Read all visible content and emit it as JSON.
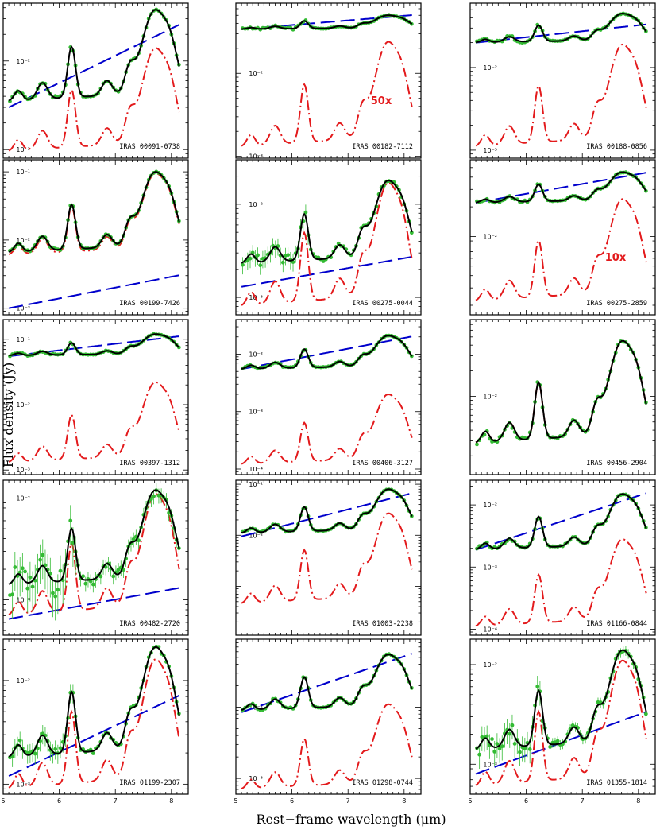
{
  "figure": {
    "ylabel": "Flux density (Jy)",
    "xlabel": "Rest−frame wavelength (μm)"
  },
  "chart_data": {
    "type": "line",
    "layout": {
      "columns": 3,
      "rows": 5,
      "log_y": true,
      "xlim": [
        5.0,
        8.3
      ]
    },
    "x_ticks": [
      5,
      6,
      7,
      8
    ],
    "x_tick_labels": [
      "5",
      "6",
      "7",
      "8"
    ],
    "colors": {
      "observed": "#33bb33",
      "total": "#000000",
      "continuum": "#0000cc",
      "pah": "#e31a1c"
    },
    "panels": [
      {
        "name": "IRAS 00091-0738",
        "ylim": [
          0.0008,
          0.045
        ],
        "yticks": [
          0.001,
          0.01
        ],
        "ytick_labels": [
          "10⁻³",
          "10⁻²"
        ],
        "scale_label": "",
        "cont": [
          0.003,
          0.025
        ],
        "pah_peak": 0.014,
        "pah_min": 0.00095,
        "tot_peak": 0.038,
        "tot_min": 0.0035,
        "noise": 0.05
      },
      {
        "name": "IRAS 00182-7112",
        "ylim": [
          0.00095,
          0.07
        ],
        "yticks": [
          0.001,
          0.01
        ],
        "ytick_labels": [
          "10⁻³",
          "10⁻²"
        ],
        "scale_label": "50x",
        "cont": [
          0.034,
          0.05
        ],
        "pah_peak": 0.024,
        "pah_min": 0.0013,
        "tot_peak": 0.05,
        "tot_min": 0.034,
        "noise": 0.03
      },
      {
        "name": "IRAS 00188-0856",
        "ylim": [
          0.0008,
          0.06
        ],
        "yticks": [
          0.001,
          0.01
        ],
        "ytick_labels": [
          "10⁻³",
          "10⁻²"
        ],
        "scale_label": "",
        "cont": [
          0.02,
          0.033
        ],
        "pah_peak": 0.019,
        "pah_min": 0.0011,
        "tot_peak": 0.045,
        "tot_min": 0.02,
        "noise": 0.04
      },
      {
        "name": "IRAS 00199-7426",
        "ylim": [
          0.0008,
          0.15
        ],
        "yticks": [
          0.001,
          0.01,
          0.1
        ],
        "ytick_labels": [
          "10⁻³",
          "10⁻²",
          "10⁻¹"
        ],
        "scale_label": "",
        "cont": [
          0.001,
          0.003
        ],
        "pah_peak": 0.095,
        "pah_min": 0.006,
        "tot_peak": 0.1,
        "tot_min": 0.0065,
        "noise": 0.04
      },
      {
        "name": "IRAS 00275-0044",
        "ylim": [
          0.00065,
          0.03
        ],
        "yticks": [
          0.001,
          0.01
        ],
        "ytick_labels": [
          "10⁻³",
          "10⁻²"
        ],
        "scale_label": "",
        "cont": [
          0.0013,
          0.0027
        ],
        "pah_peak": 0.017,
        "pah_min": 0.0008,
        "tot_peak": 0.018,
        "tot_min": 0.0023,
        "noise": 0.15
      },
      {
        "name": "IRAS 00275-2859",
        "ylim": [
          0.0016,
          0.06
        ],
        "yticks": [
          0.01
        ],
        "ytick_labels": [
          "10⁻²"
        ],
        "scale_label": "10x",
        "cont": [
          0.022,
          0.044
        ],
        "pah_peak": 0.024,
        "pah_min": 0.0022,
        "tot_peak": 0.045,
        "tot_min": 0.022,
        "noise": 0.03
      },
      {
        "name": "IRAS 00397-1312",
        "ylim": [
          0.00085,
          0.2
        ],
        "yticks": [
          0.001,
          0.01,
          0.1
        ],
        "ytick_labels": [
          "10⁻³",
          "10⁻²",
          "10⁻¹"
        ],
        "scale_label": "",
        "cont": [
          0.055,
          0.11
        ],
        "pah_peak": 0.022,
        "pah_min": 0.0013,
        "tot_peak": 0.12,
        "tot_min": 0.056,
        "noise": 0.03
      },
      {
        "name": "IRAS 00406-3127",
        "ylim": [
          8e-05,
          0.04
        ],
        "yticks": [
          0.0001,
          0.001,
          0.01
        ],
        "ytick_labels": [
          "10⁻⁴",
          "10⁻³",
          "10⁻²"
        ],
        "scale_label": "",
        "cont": [
          0.0055,
          0.02
        ],
        "pah_peak": 0.002,
        "pah_min": 0.00012,
        "tot_peak": 0.021,
        "tot_min": 0.0055,
        "noise": 0.04
      },
      {
        "name": "IRAS 00456-2904",
        "ylim": [
          0.0012,
          0.08
        ],
        "yticks": [
          0.01
        ],
        "ytick_labels": [
          "10⁻²"
        ],
        "scale_label": "",
        "cont": [],
        "pah_peak": 0.045,
        "pah_min": 0.0028,
        "tot_peak": 0.045,
        "tot_min": 0.0028,
        "noise": 0.08
      },
      {
        "name": "IRAS 00482-2720",
        "ylim": [
          0.00045,
          0.015
        ],
        "yticks": [
          0.001,
          0.01
        ],
        "ytick_labels": [
          "10⁻³",
          "10⁻²"
        ],
        "scale_label": "",
        "cont": [
          0.00065,
          0.0013
        ],
        "pah_peak": 0.011,
        "pah_min": 0.0007,
        "tot_peak": 0.012,
        "tot_min": 0.0014,
        "noise": 0.3
      },
      {
        "name": "IRAS 01003-2238",
        "ylim": [
          0.00011,
          0.12
        ],
        "yticks": [
          0.01,
          0.1
        ],
        "ytick_labels": [
          "10⁻²",
          "10⁻¹"
        ],
        "scale_label": "",
        "cont": [
          0.0095,
          0.065
        ],
        "pah_peak": 0.027,
        "pah_min": 0.00045,
        "tot_peak": 0.08,
        "tot_min": 0.011,
        "noise": 0.04
      },
      {
        "name": "IRAS 01166-0844",
        "ylim": [
          8e-05,
          0.025
        ],
        "yticks": [
          0.0001,
          0.001,
          0.01
        ],
        "ytick_labels": [
          "10⁻⁴",
          "10⁻³",
          "10⁻²"
        ],
        "scale_label": "",
        "cont": [
          0.0019,
          0.015
        ],
        "pah_peak": 0.0028,
        "pah_min": 0.00011,
        "tot_peak": 0.015,
        "tot_min": 0.0019,
        "noise": 0.06
      },
      {
        "name": "IRAS 01199-2307",
        "ylim": [
          0.0008,
          0.025
        ],
        "yticks": [
          0.001,
          0.01
        ],
        "ytick_labels": [
          "10⁻³",
          "10⁻²"
        ],
        "scale_label": "",
        "cont": [
          0.0012,
          0.007
        ],
        "pah_peak": 0.016,
        "pah_min": 0.0009,
        "tot_peak": 0.021,
        "tot_min": 0.0018,
        "noise": 0.15
      },
      {
        "name": "IRAS 01298-0744",
        "ylim": [
          0.0006,
          0.09
        ],
        "yticks": [
          0.001,
          0.01
        ],
        "ytick_labels": [
          "10⁻³",
          "10⁻²"
        ],
        "scale_label": "",
        "cont": [
          0.0085,
          0.055
        ],
        "pah_peak": 0.011,
        "pah_min": 0.0007,
        "tot_peak": 0.055,
        "tot_min": 0.009,
        "noise": 0.04
      },
      {
        "name": "IRAS 01355-1814",
        "ylim": [
          0.0005,
          0.018
        ],
        "yticks": [
          0.001,
          0.01
        ],
        "ytick_labels": [
          "10⁻³",
          "10⁻²"
        ],
        "scale_label": "",
        "cont": [
          0.0008,
          0.0033
        ],
        "pah_peak": 0.011,
        "pah_min": 0.0006,
        "tot_peak": 0.014,
        "tot_min": 0.0014,
        "noise": 0.2
      }
    ]
  }
}
